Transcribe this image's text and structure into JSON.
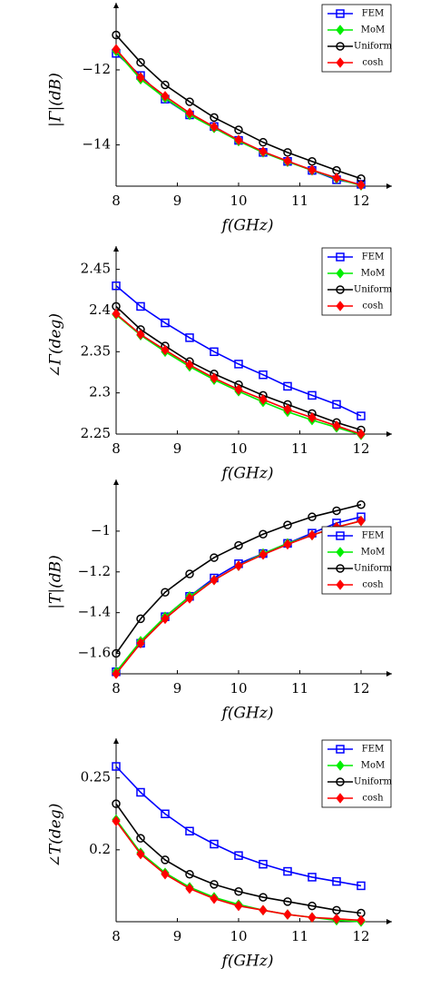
{
  "chart_data": [
    {
      "type": "line",
      "ylabel": "|Γ|(dB)",
      "xlabel": "f(GHz)",
      "x": [
        8,
        8.4,
        8.8,
        9.2,
        9.6,
        10,
        10.4,
        10.8,
        11.2,
        11.6,
        12
      ],
      "xlim": [
        8,
        12
      ],
      "xticks": [
        8,
        9,
        10,
        11,
        12
      ],
      "ylim": [
        -15.1,
        -10.5
      ],
      "yticks": [
        {
          "value": -14,
          "label": "−14"
        },
        {
          "value": -12,
          "label": "−12"
        }
      ],
      "legend": "upper right",
      "series": [
        {
          "name": "FEM",
          "color": "#0000ff",
          "marker": "square",
          "values": [
            -11.56,
            -12.15,
            -12.78,
            -13.2,
            -13.51,
            -13.88,
            -14.2,
            -14.44,
            -14.68,
            -14.93,
            -15.05
          ]
        },
        {
          "name": "MoM",
          "color": "#00ee00",
          "marker": "diamond",
          "values": [
            -11.5,
            -12.25,
            -12.75,
            -13.2,
            -13.55,
            -13.9,
            -14.2,
            -14.45,
            -14.68,
            -14.9,
            -15.08
          ]
        },
        {
          "name": "Uniform",
          "color": "#000000",
          "marker": "circle",
          "values": [
            -11.07,
            -11.8,
            -12.4,
            -12.85,
            -13.27,
            -13.6,
            -13.93,
            -14.2,
            -14.44,
            -14.68,
            -14.9
          ]
        },
        {
          "name": "cosh",
          "color": "#ff0000",
          "marker": "diamond",
          "values": [
            -11.45,
            -12.2,
            -12.7,
            -13.15,
            -13.52,
            -13.87,
            -14.18,
            -14.43,
            -14.67,
            -14.88,
            -15.07
          ]
        }
      ]
    },
    {
      "type": "line",
      "ylabel": "∠Γ(deg)",
      "xlabel": "f(GHz)",
      "x": [
        8,
        8.4,
        8.8,
        9.2,
        9.6,
        10,
        10.4,
        10.8,
        11.2,
        11.6,
        12
      ],
      "xlim": [
        8,
        12
      ],
      "xticks": [
        8,
        9,
        10,
        11,
        12
      ],
      "ylim": [
        2.25,
        2.465
      ],
      "yticks": [
        2.25,
        2.3,
        2.35,
        2.4,
        2.45
      ],
      "legend": "upper right",
      "series": [
        {
          "name": "FEM",
          "color": "#0000ff",
          "marker": "square",
          "values": [
            2.43,
            2.405,
            2.385,
            2.367,
            2.35,
            2.335,
            2.322,
            2.308,
            2.297,
            2.286,
            2.272
          ]
        },
        {
          "name": "MoM",
          "color": "#00ee00",
          "marker": "diamond",
          "values": [
            2.395,
            2.37,
            2.35,
            2.332,
            2.316,
            2.302,
            2.289,
            2.277,
            2.267,
            2.258,
            2.249
          ]
        },
        {
          "name": "Uniform",
          "color": "#000000",
          "marker": "circle",
          "values": [
            2.405,
            2.377,
            2.357,
            2.338,
            2.323,
            2.31,
            2.297,
            2.286,
            2.275,
            2.264,
            2.255
          ]
        },
        {
          "name": "cosh",
          "color": "#ff0000",
          "marker": "diamond",
          "values": [
            2.396,
            2.371,
            2.352,
            2.334,
            2.318,
            2.304,
            2.292,
            2.28,
            2.27,
            2.26,
            2.25
          ]
        }
      ]
    },
    {
      "type": "line",
      "ylabel": "|T|(dB)",
      "xlabel": "f(GHz)",
      "x": [
        8,
        8.4,
        8.8,
        9.2,
        9.6,
        10,
        10.4,
        10.8,
        11.2,
        11.6,
        12
      ],
      "xlim": [
        8,
        12
      ],
      "xticks": [
        8,
        9,
        10,
        11,
        12
      ],
      "ylim": [
        -1.7,
        -0.8
      ],
      "yticks": [
        {
          "value": -1.6,
          "label": "−1.6"
        },
        {
          "value": -1.4,
          "label": "−1.4"
        },
        {
          "value": -1.2,
          "label": "−1.2"
        },
        {
          "value": -1,
          "label": "−1"
        }
      ],
      "legend": "right",
      "series": [
        {
          "name": "FEM",
          "color": "#0000ff",
          "marker": "square",
          "values": [
            -1.69,
            -1.55,
            -1.42,
            -1.32,
            -1.23,
            -1.16,
            -1.11,
            -1.06,
            -1.01,
            -0.96,
            -0.93
          ]
        },
        {
          "name": "MoM",
          "color": "#00ee00",
          "marker": "diamond",
          "values": [
            -1.69,
            -1.54,
            -1.42,
            -1.32,
            -1.24,
            -1.17,
            -1.11,
            -1.06,
            -1.02,
            -0.98,
            -0.95
          ]
        },
        {
          "name": "Uniform",
          "color": "#000000",
          "marker": "circle",
          "values": [
            -1.6,
            -1.43,
            -1.3,
            -1.21,
            -1.13,
            -1.07,
            -1.015,
            -0.97,
            -0.93,
            -0.9,
            -0.87
          ]
        },
        {
          "name": "cosh",
          "color": "#ff0000",
          "marker": "diamond",
          "values": [
            -1.7,
            -1.55,
            -1.43,
            -1.33,
            -1.24,
            -1.17,
            -1.115,
            -1.065,
            -1.02,
            -0.98,
            -0.95
          ]
        }
      ]
    },
    {
      "type": "line",
      "ylabel": "∠T(deg)",
      "xlabel": "f(GHz)",
      "x": [
        8,
        8.4,
        8.8,
        9.2,
        9.6,
        10,
        10.4,
        10.8,
        11.2,
        11.6,
        12
      ],
      "xlim": [
        8,
        12
      ],
      "xticks": [
        8,
        9,
        10,
        11,
        12
      ],
      "ylim": [
        0.15,
        0.27
      ],
      "yticks": [
        0.2,
        0.25
      ],
      "legend": "upper right",
      "series": [
        {
          "name": "FEM",
          "color": "#0000ff",
          "marker": "square",
          "values": [
            0.258,
            0.24,
            0.225,
            0.213,
            0.204,
            0.196,
            0.19,
            0.185,
            0.181,
            0.178,
            0.175
          ]
        },
        {
          "name": "MoM",
          "color": "#00ee00",
          "marker": "diamond",
          "values": [
            0.221,
            0.198,
            0.184,
            0.174,
            0.167,
            0.162,
            0.158,
            0.155,
            0.153,
            0.151,
            0.15
          ]
        },
        {
          "name": "Uniform",
          "color": "#000000",
          "marker": "circle",
          "values": [
            0.232,
            0.208,
            0.193,
            0.183,
            0.176,
            0.171,
            0.167,
            0.164,
            0.161,
            0.158,
            0.156
          ]
        },
        {
          "name": "cosh",
          "color": "#ff0000",
          "marker": "diamond",
          "values": [
            0.22,
            0.197,
            0.183,
            0.173,
            0.166,
            0.161,
            0.158,
            0.155,
            0.153,
            0.152,
            0.151
          ]
        }
      ]
    }
  ]
}
